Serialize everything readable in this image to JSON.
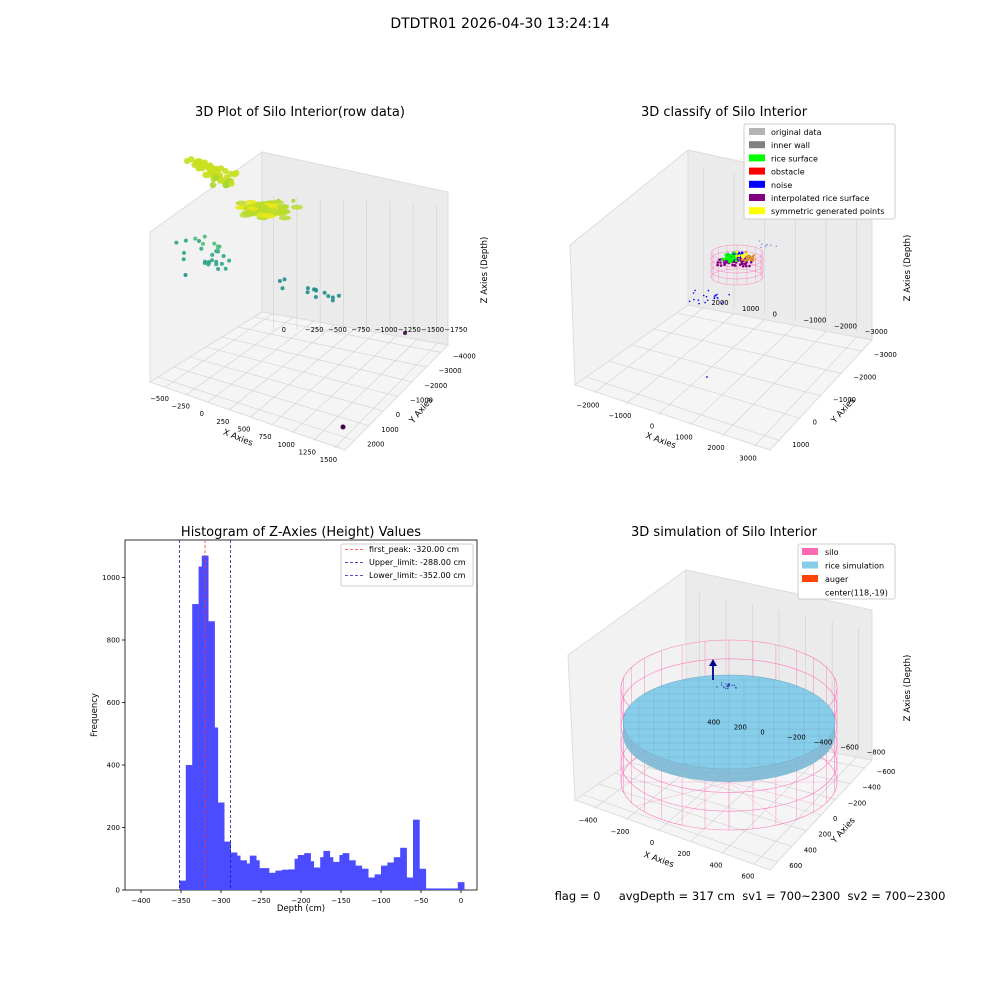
{
  "figure_title": "DTDTR01 2026-04-30 13:24:14",
  "footer": {
    "flag": "flag = 0",
    "avg_depth": "avgDepth = 317 cm",
    "sv1": "sv1 = 700~2300",
    "sv2": "sv2 = 700~2300"
  },
  "colors": {
    "hist_bar": "#4b4bff",
    "first_peak_line": "#ff3333",
    "limit_lines": "#1a1aa6",
    "silo": "#ff69b4",
    "rice_simulation": "#87ceeb",
    "auger": "#ff4500",
    "original_data": "#b3b3b3",
    "inner_wall": "#808080",
    "rice_surface": "#00ff00",
    "obstacle": "#ff0000",
    "noise": "#0000ff",
    "interpolated_rice_surface": "#800080",
    "symmetric_generated_points": "#ffff00"
  },
  "chart_data": [
    {
      "type": "scatter",
      "projection": "3d",
      "title": "3D Plot of Silo Interior(row data)",
      "xlabel": "X Axies",
      "ylabel": "Y Axies",
      "zlabel": "Z Axies (Depth)",
      "xticks": [
        "−500",
        "−250",
        "0",
        "250",
        "500",
        "750",
        "1000",
        "1250",
        "1500"
      ],
      "yticks": [
        "2000",
        "1000",
        "0",
        "−1000",
        "−2000",
        "−3000",
        "−4000"
      ],
      "zticks": [
        "0",
        "−250",
        "−500",
        "−750",
        "−1000",
        "−1250",
        "−1500",
        "−1750"
      ],
      "clusters": [
        {
          "x": -50,
          "y": 1700,
          "z": -50,
          "n": 40,
          "spread": [
            180,
            250,
            60
          ]
        },
        {
          "x": 100,
          "y": 1600,
          "z": -100,
          "n": 20,
          "spread": [
            120,
            250,
            80
          ]
        },
        {
          "x": 500,
          "y": -300,
          "z": -400,
          "n": 12,
          "spread": [
            120,
            200,
            100
          ]
        },
        {
          "x": -200,
          "y": 1000,
          "z": -1100,
          "n": 30,
          "spread": [
            180,
            200,
            200
          ]
        },
        {
          "x": 700,
          "y": -1800,
          "z": -1400,
          "n": 14,
          "spread": [
            200,
            150,
            60
          ]
        },
        {
          "x": 1500,
          "y": -4000,
          "z": -1750,
          "n": 1,
          "spread": [
            0,
            0,
            0
          ]
        }
      ]
    },
    {
      "type": "scatter",
      "projection": "3d",
      "title": "3D classify of Silo Interior",
      "xlabel": "X Axies",
      "ylabel": "Y Axies",
      "zlabel": "Z Axies (Depth)",
      "xticks": [
        "−2000",
        "−1000",
        "0",
        "1000",
        "2000",
        "3000"
      ],
      "yticks": [
        "1000",
        "0",
        "−1000",
        "−2000",
        "−3000"
      ],
      "zticks": [
        "2000",
        "1000",
        "0",
        "−1000",
        "−2000",
        "−3000"
      ],
      "legend": [
        "original data",
        "inner wall",
        "rice surface",
        "obstacle",
        "noise",
        "interpolated rice surface",
        "symmetric generated points"
      ],
      "legend_loc": "upper right"
    },
    {
      "type": "bar",
      "title": "Histogram of Z-Axies (Height) Values",
      "xlabel": "Depth (cm)",
      "ylabel": "Frequency",
      "xlim": [
        -420,
        20
      ],
      "ylim": [
        0,
        1120
      ],
      "xticks": [
        -400,
        -350,
        -300,
        -250,
        -200,
        -150,
        -100,
        -50,
        0
      ],
      "xticklabels": [
        "−400",
        "−350",
        "−300",
        "−250",
        "−200",
        "−150",
        "−100",
        "−50",
        "0"
      ],
      "yticks": [
        0,
        200,
        400,
        600,
        800,
        1000
      ],
      "bin_width": 4,
      "bins_start": [
        -352,
        -348,
        -344,
        -340,
        -336,
        -332,
        -328,
        -324,
        -320,
        -316,
        -312,
        -308,
        -304,
        -300,
        -296,
        -292,
        -288,
        -284,
        -280,
        -276,
        -272,
        -268,
        -264,
        -260,
        -256,
        -252,
        -248,
        -244,
        -240,
        -236,
        -232,
        -228,
        -224,
        -220,
        -216,
        -212,
        -208,
        -204,
        -200,
        -196,
        -192,
        -188,
        -184,
        -180,
        -176,
        -172,
        -168,
        -164,
        -160,
        -156,
        -152,
        -148,
        -144,
        -140,
        -136,
        -132,
        -128,
        -124,
        -120,
        -116,
        -112,
        -108,
        -104,
        -100,
        -96,
        -92,
        -88,
        -84,
        -80,
        -76,
        -72,
        -68,
        -64,
        -60,
        -56,
        -52,
        -48,
        -44,
        -40,
        -36,
        -32,
        -28,
        -24,
        -20,
        -16,
        -12,
        -8,
        -4,
        0
      ],
      "counts": [
        30,
        30,
        400,
        400,
        915,
        915,
        1035,
        1070,
        1070,
        860,
        860,
        520,
        280,
        280,
        155,
        155,
        120,
        120,
        110,
        95,
        95,
        85,
        110,
        110,
        95,
        70,
        70,
        70,
        55,
        55,
        62,
        62,
        65,
        65,
        66,
        66,
        100,
        112,
        112,
        118,
        118,
        92,
        72,
        72,
        105,
        125,
        125,
        105,
        90,
        90,
        112,
        118,
        118,
        95,
        95,
        78,
        78,
        68,
        68,
        40,
        40,
        50,
        50,
        78,
        78,
        88,
        88,
        105,
        105,
        135,
        135,
        40,
        40,
        225,
        225,
        68,
        68,
        5,
        5,
        5,
        5,
        5,
        5,
        5,
        5,
        5,
        5,
        25,
        25
      ],
      "vlines": [
        {
          "label": "first_peak: -320.00 cm",
          "x": -320,
          "color": "#ff3333"
        },
        {
          "label": "Upper_limit: -288.00 cm",
          "x": -288,
          "color": "#1a1aa6"
        },
        {
          "label": "Lower_limit: -352.00 cm",
          "x": -352,
          "color": "#1a1aa6"
        }
      ],
      "legend_loc": "upper right"
    },
    {
      "type": "surface",
      "projection": "3d",
      "title": "3D simulation of Silo Interior",
      "xlabel": "X Axies",
      "ylabel": "Y Axies",
      "zlabel": "Z Axies (Depth)",
      "xticks": [
        "−400",
        "−200",
        "0",
        "200",
        "400",
        "600"
      ],
      "yticks": [
        "600",
        "400",
        "200",
        "0",
        "−200",
        "−400",
        "−600"
      ],
      "zticks": [
        "400",
        "200",
        "0",
        "−200",
        "−400",
        "−600",
        "−800"
      ],
      "legend": [
        "silo",
        "rice simulation",
        "auger",
        "center(118,-19)"
      ],
      "legend_loc": "upper right"
    }
  ]
}
